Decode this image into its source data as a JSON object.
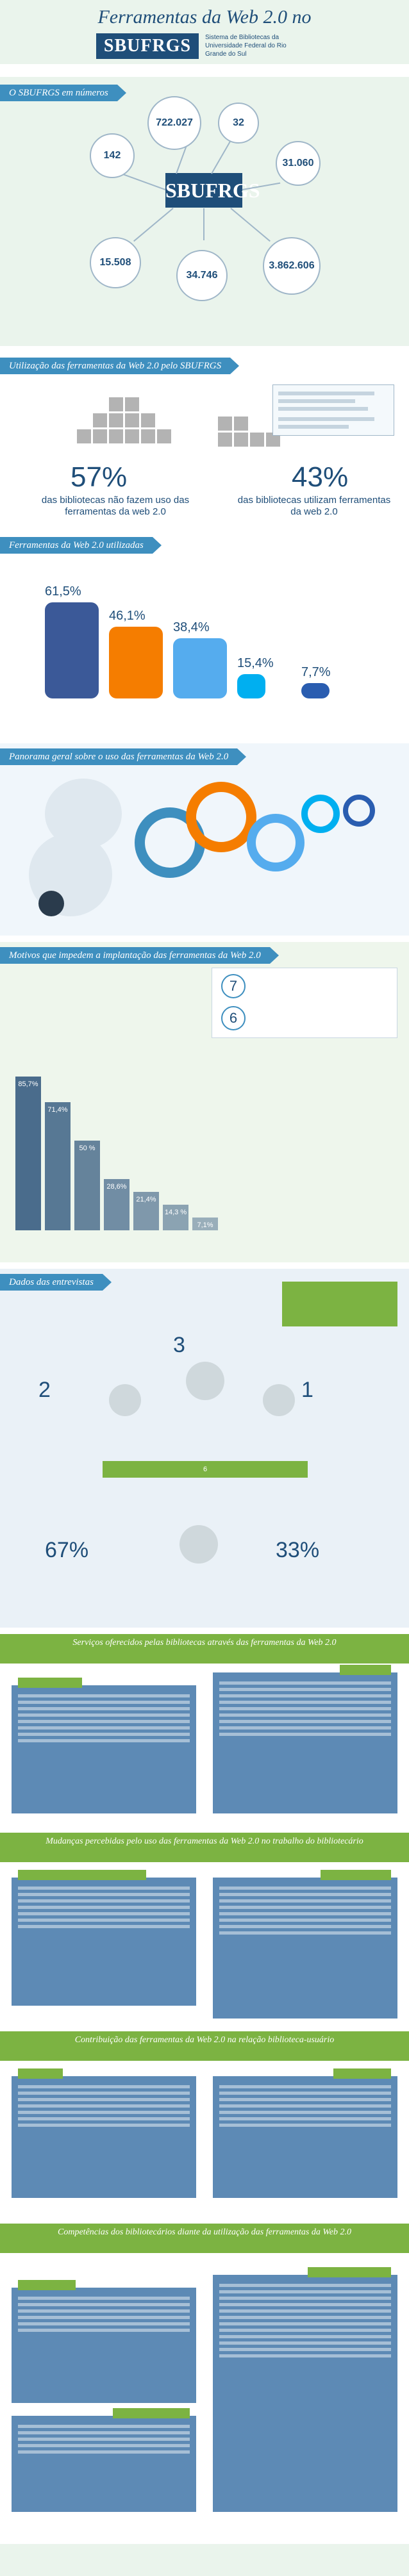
{
  "header": {
    "title": "Ferramentas da Web 2.0 no",
    "logo": "SBUFRGS",
    "subtitle": "Sistema de Bibliotecas da Universidade Federal do Rio Grande do Sul"
  },
  "sections": {
    "numbers": "O SBUFRGS em números",
    "usage": "Utilização das ferramentas da Web 2.0 pelo SBUFRGS",
    "tools": "Ferramentas da Web 2.0 utilizadas",
    "panorama": "Panorama geral sobre o uso das ferramentas da Web 2.0",
    "reasons": "Motivos que impedem a implantação das ferramentas da Web 2.0",
    "interviews": "Dados das entrevistas",
    "services": "Serviços oferecidos pelas bibliotecas através das ferramentas da Web 2.0",
    "changes": "Mudanças percebidas pelo uso das ferramentas da Web 2.0 no trabalho do bibliotecário",
    "contribution": "Contribuição das ferramentas da Web 2.0 na relação biblioteca-usuário",
    "skills": "Competências dos bibliotecários diante da utilização das ferramentas da Web 2.0"
  },
  "numbers": {
    "center_logo": "SBUFRGS",
    "bubbles": [
      {
        "value": "722.027"
      },
      {
        "value": "32"
      },
      {
        "value": "142"
      },
      {
        "value": "31.060"
      },
      {
        "value": "15.508"
      },
      {
        "value": "34.746"
      },
      {
        "value": "3.862.606"
      }
    ]
  },
  "usage": {
    "left_pct": "57%",
    "left_caption": "das bibliotecas não fazem uso das ferramentas da web 2.0",
    "right_pct": "43%",
    "right_caption": "das bibliotecas utilizam ferramentas da web 2.0"
  },
  "tools": {
    "items": [
      {
        "pct": "61,5%",
        "value": 61.5,
        "color": "#3b5998",
        "icon": "facebook-icon"
      },
      {
        "pct": "46,1%",
        "value": 46.1,
        "color": "#f57d00",
        "icon": "blogger-icon"
      },
      {
        "pct": "38,4%",
        "value": 38.4,
        "color": "#55acee",
        "icon": "twitter-icon"
      },
      {
        "pct": "15,4%",
        "value": 15.4,
        "color": "#00aff0",
        "icon": "skype-icon"
      },
      {
        "pct": "7,7%",
        "value": 7.7,
        "color": "#2a5db0",
        "icon": "other-tool-icon"
      }
    ]
  },
  "reasons": {
    "stat1": "7",
    "stat2": "6",
    "bars": [
      {
        "value": "85,7%",
        "v": 85.7
      },
      {
        "value": "71,4%",
        "v": 71.4
      },
      {
        "value": "50 %",
        "v": 50
      },
      {
        "value": "28,6%",
        "v": 28.6
      },
      {
        "value": "21,4%",
        "v": 21.4
      },
      {
        "value": "14,3 %",
        "v": 14.3
      },
      {
        "value": "7,1%",
        "v": 7.1
      }
    ]
  },
  "interviews": {
    "top_value": "3",
    "left_value": "2",
    "right_value": "1",
    "chevron_value": "6",
    "left_pct": "67%",
    "right_pct": "33%"
  },
  "colors": {
    "primary": "#1f4e79",
    "accent": "#3e8fbf",
    "green": "#7cb342"
  }
}
